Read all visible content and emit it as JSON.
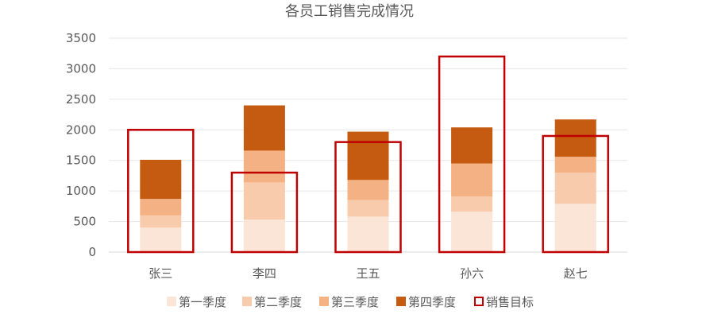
{
  "chart_data": {
    "type": "bar",
    "title": "各员工销售完成情况",
    "categories": [
      "张三",
      "李四",
      "王五",
      "孙六",
      "赵七"
    ],
    "stacked": true,
    "series": [
      {
        "name": "第一季度",
        "color": "#fbe5d6",
        "values": [
          400,
          530,
          580,
          660,
          790
        ]
      },
      {
        "name": "第二季度",
        "color": "#f8cbad",
        "values": [
          200,
          610,
          270,
          250,
          510
        ]
      },
      {
        "name": "第三季度",
        "color": "#f4b183",
        "values": [
          270,
          520,
          330,
          540,
          260
        ]
      },
      {
        "name": "第四季度",
        "color": "#c55a11",
        "values": [
          640,
          740,
          790,
          590,
          610
        ]
      }
    ],
    "target": {
      "name": "销售目标",
      "color": "#c00000",
      "values": [
        2000,
        1300,
        1800,
        3200,
        1900
      ]
    },
    "ylim": [
      0,
      3500
    ],
    "yticks": [
      0,
      500,
      1000,
      1500,
      2000,
      2500,
      3000,
      3500
    ],
    "grid": true,
    "legend": "bottom"
  }
}
